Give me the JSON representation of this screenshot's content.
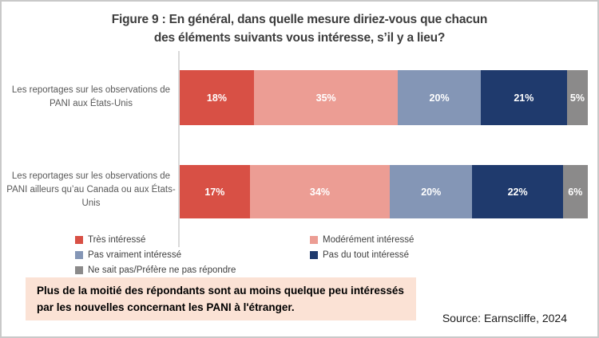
{
  "title": {
    "line1": "Figure 9 : En général, dans quelle mesure diriez-vous que chacun",
    "line2": "des éléments suivants vous intéresse, s’il y a lieu?"
  },
  "chart_data": {
    "type": "bar",
    "orientation": "horizontal_stacked",
    "unit": "percent",
    "xlim": [
      0,
      100
    ],
    "grid": false,
    "legend_position": "bottom",
    "categories": [
      "Les reportages sur les observations de PANI aux États-Unis",
      "Les reportages sur les observations de PANI ailleurs qu’au Canada ou aux États-Unis"
    ],
    "series": [
      {
        "name": "Très intéressé",
        "color": "#d85045",
        "values": [
          18,
          17
        ],
        "labels": [
          "18%",
          "17%"
        ]
      },
      {
        "name": "Modérément intéressé",
        "color": "#ec9d94",
        "values": [
          35,
          34
        ],
        "labels": [
          "35%",
          "34%"
        ]
      },
      {
        "name": "Pas vraiment intéressé",
        "color": "#8496b6",
        "values": [
          20,
          20
        ],
        "labels": [
          "20%",
          "20%"
        ]
      },
      {
        "name": "Pas du tout intéressé",
        "color": "#1f3a6d",
        "values": [
          21,
          22
        ],
        "labels": [
          "21%",
          "22%"
        ]
      },
      {
        "name": "Ne sait pas/Préfère ne pas répondre",
        "color": "#8b8a8a",
        "values": [
          5,
          6
        ],
        "labels": [
          "5%",
          "6%"
        ]
      }
    ]
  },
  "callout": {
    "text": "Plus de la moitié des répondants sont au moins quelque peu intéressés par les nouvelles concernant les PANI à l'étranger.",
    "background": "#fbe2d5"
  },
  "source": {
    "text": "Source: Earnscliffe, 2024"
  }
}
